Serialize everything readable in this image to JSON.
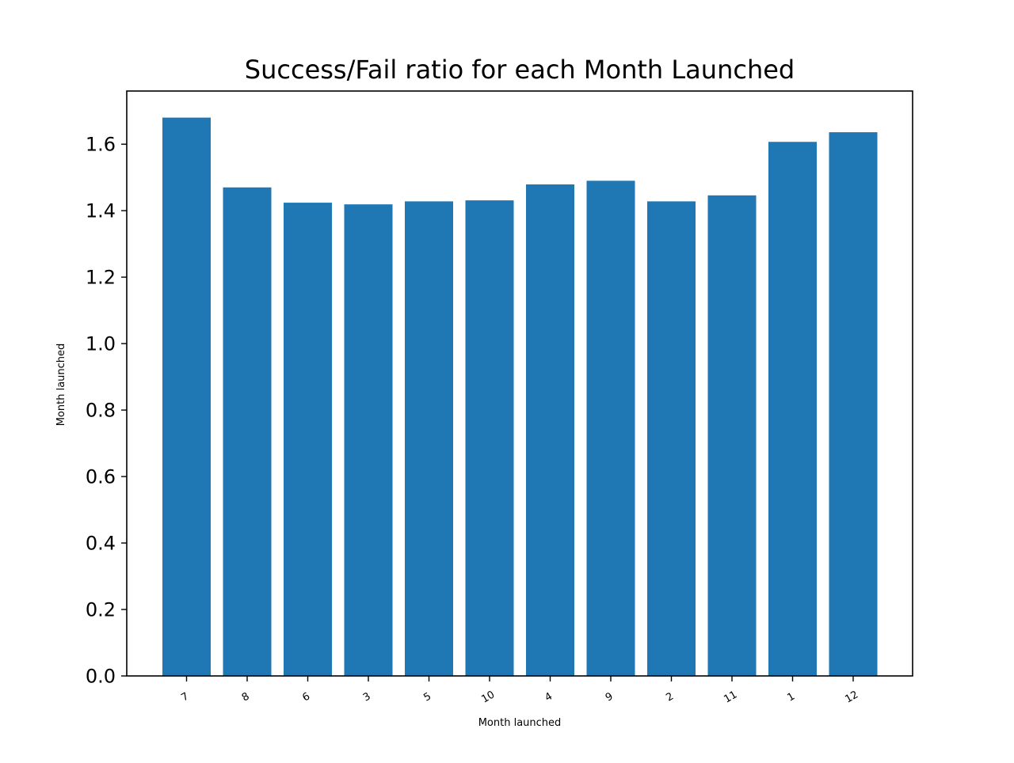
{
  "chart_data": {
    "type": "bar",
    "title": "Success/Fail ratio for each Month Launched",
    "xlabel": "Month launched",
    "ylabel": "Month launched",
    "categories": [
      "7",
      "8",
      "6",
      "3",
      "5",
      "10",
      "4",
      "9",
      "2",
      "11",
      "1",
      "12"
    ],
    "values": [
      1.68,
      1.47,
      1.424,
      1.419,
      1.428,
      1.431,
      1.479,
      1.49,
      1.428,
      1.446,
      1.607,
      1.636
    ],
    "ylim": [
      0,
      1.76
    ],
    "yticks": [
      0.0,
      0.2,
      0.4,
      0.6,
      0.8,
      1.0,
      1.2,
      1.4,
      1.6
    ],
    "ytick_labels": [
      "0.0",
      "0.2",
      "0.4",
      "0.6",
      "0.8",
      "1.0",
      "1.2",
      "1.4",
      "1.6"
    ],
    "grid": false,
    "bar_color": "#1f77b4"
  }
}
